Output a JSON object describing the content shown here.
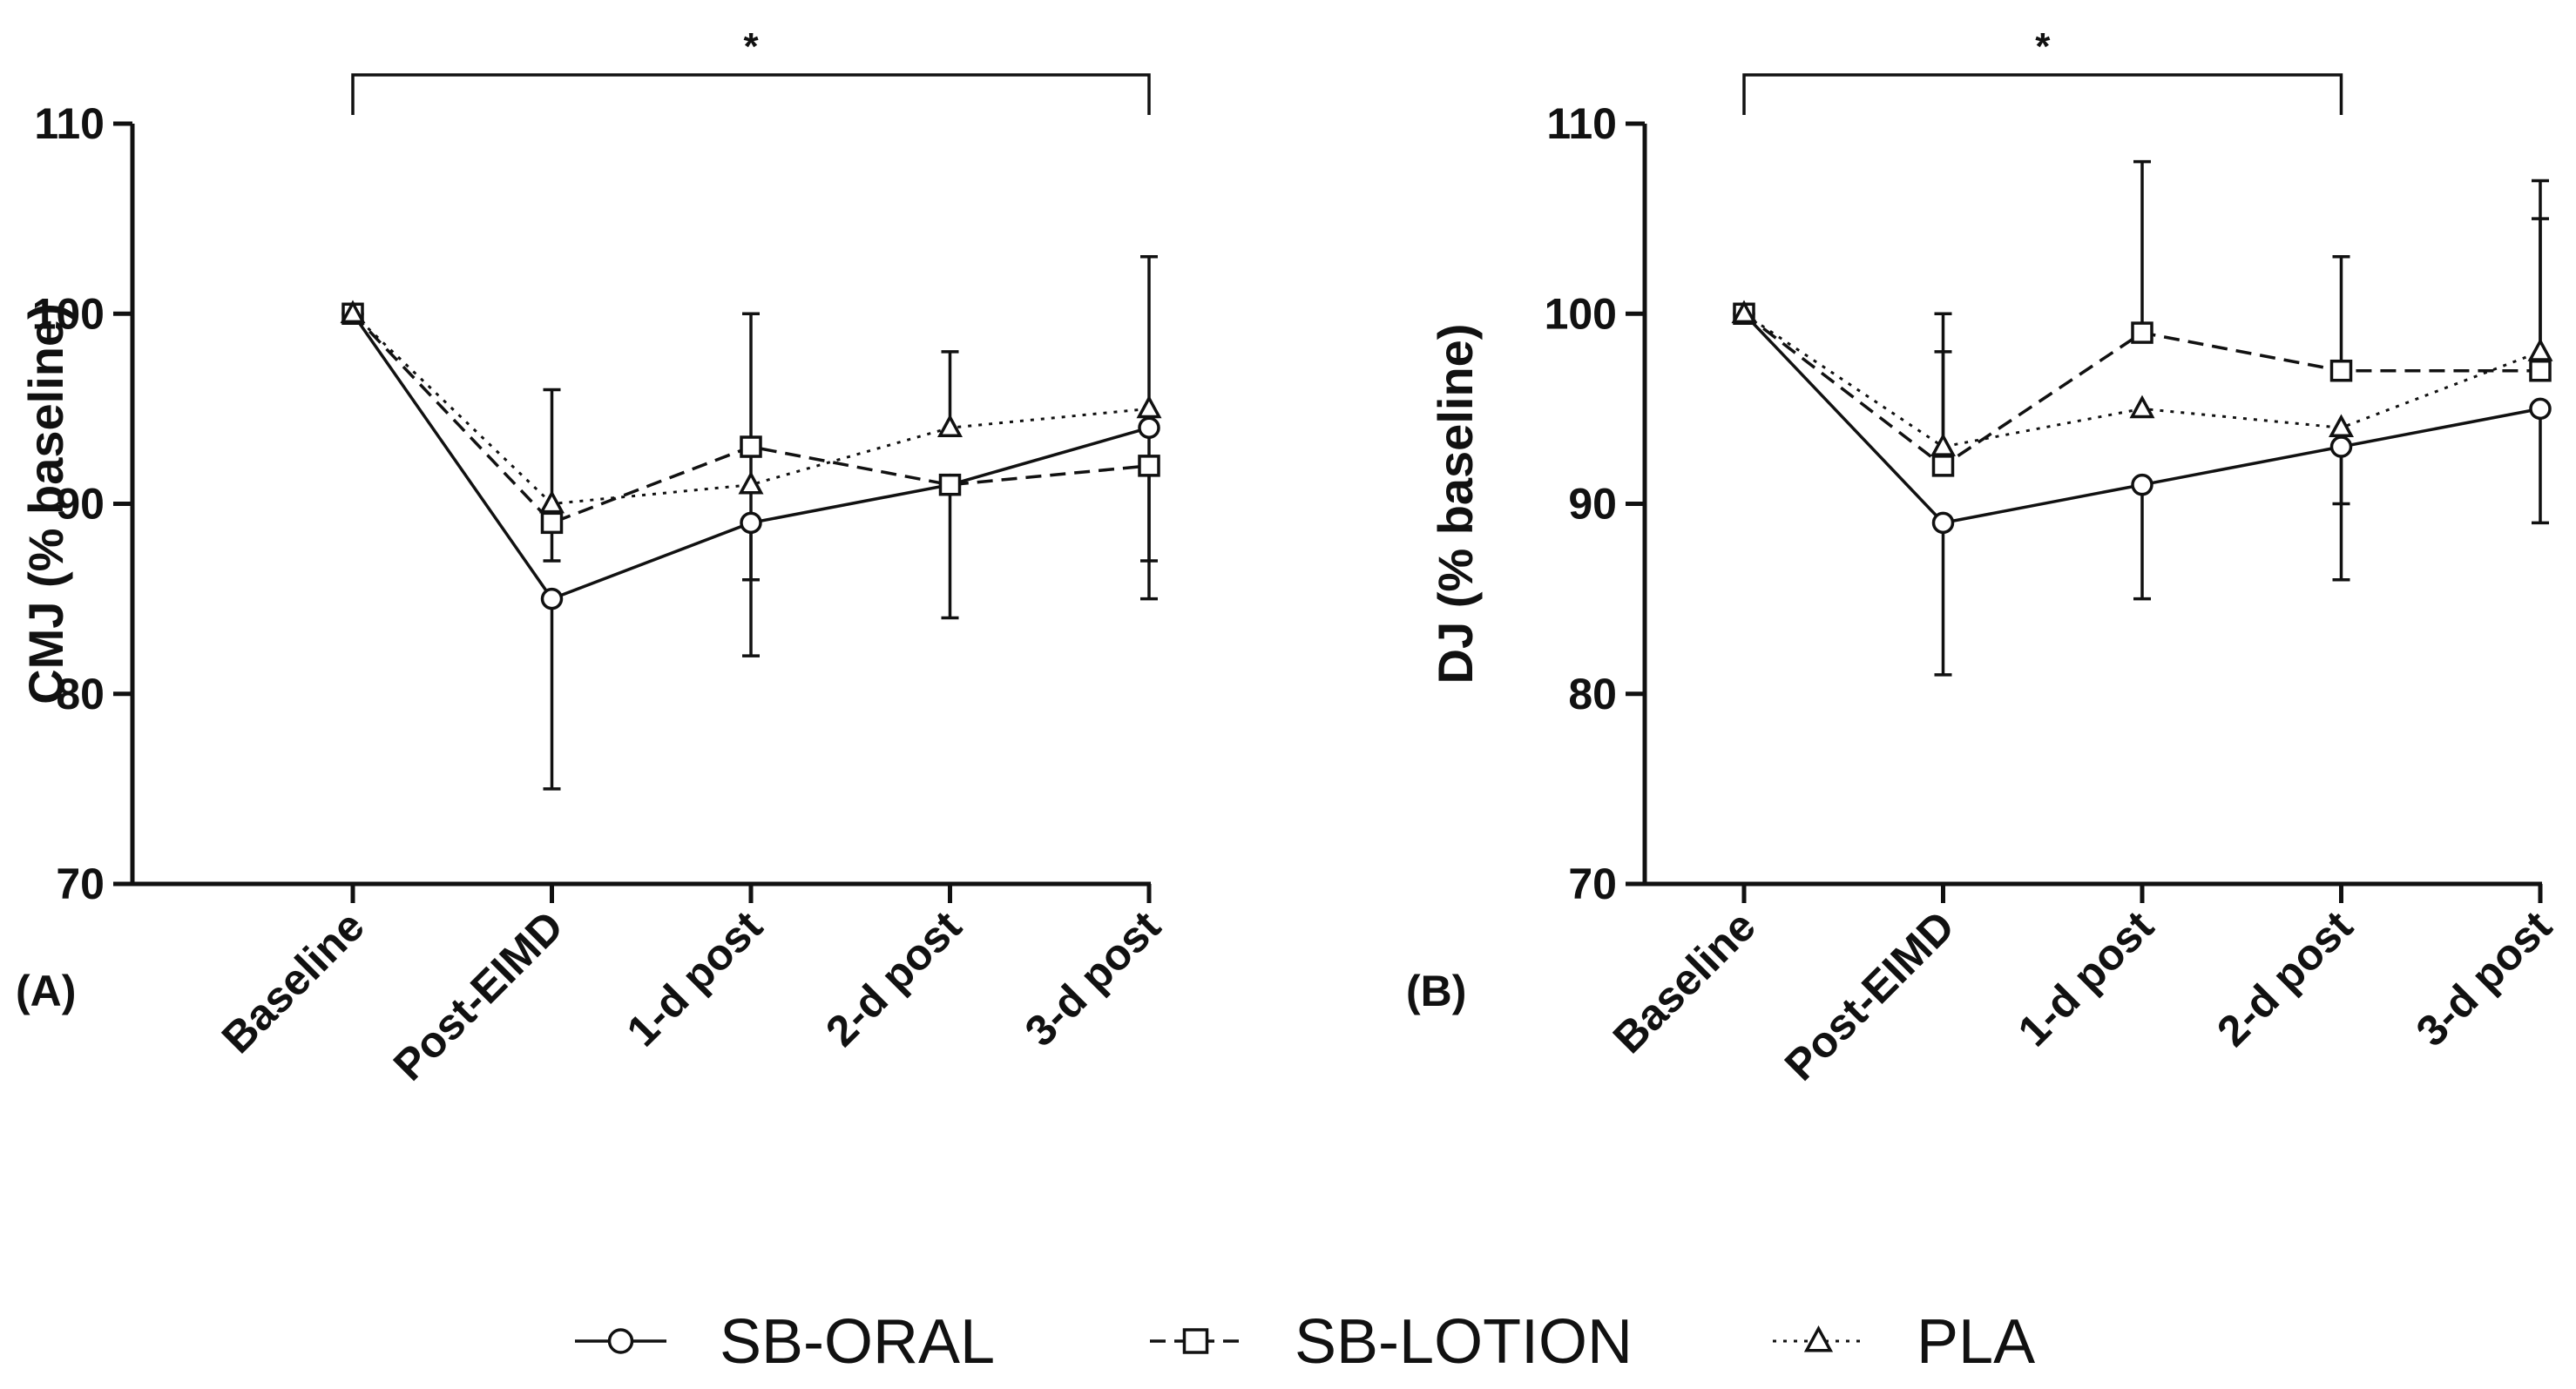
{
  "chart_data": [
    {
      "type": "line",
      "panel_label": "(A)",
      "ylabel": "CMJ (% baseline)",
      "xlabel": "",
      "ylim": [
        70,
        110
      ],
      "yticks": [
        70,
        80,
        90,
        100,
        110
      ],
      "categories": [
        "Baseline",
        "Post-EIMD",
        "1-d post",
        "2-d post",
        "3-d post"
      ],
      "significance": {
        "label": "*",
        "from": "Baseline",
        "to": "3-d post"
      },
      "series": [
        {
          "name": "SB-ORAL",
          "marker": "circle",
          "style": "solid",
          "values": [
            100,
            85,
            89,
            91,
            94
          ],
          "err_low": [
            null,
            75,
            82,
            84,
            85
          ],
          "err_high": [
            null,
            85,
            89,
            91,
            103
          ]
        },
        {
          "name": "SB-LOTION",
          "marker": "square",
          "style": "dashed",
          "values": [
            100,
            89,
            93,
            91,
            92
          ],
          "err_low": [
            null,
            87,
            86,
            91,
            87
          ],
          "err_high": [
            null,
            89,
            100,
            91,
            92
          ]
        },
        {
          "name": "PLA",
          "marker": "triangle",
          "style": "dotted",
          "values": [
            100,
            90,
            91,
            94,
            95
          ],
          "err_low": [
            null,
            90,
            91,
            94,
            95
          ],
          "err_high": [
            null,
            96,
            91,
            98,
            95
          ]
        }
      ]
    },
    {
      "type": "line",
      "panel_label": "(B)",
      "ylabel": "DJ (% baseline)",
      "xlabel": "",
      "ylim": [
        70,
        110
      ],
      "yticks": [
        70,
        80,
        90,
        100,
        110
      ],
      "categories": [
        "Baseline",
        "Post-EIMD",
        "1-d post",
        "2-d post",
        "3-d post"
      ],
      "significance": {
        "label": "*",
        "from": "Baseline",
        "to": "2-d post"
      },
      "series": [
        {
          "name": "SB-ORAL",
          "marker": "circle",
          "style": "solid",
          "values": [
            100,
            89,
            91,
            93,
            95
          ],
          "err_low": [
            null,
            81,
            85,
            86,
            89
          ],
          "err_high": [
            null,
            89,
            91,
            93,
            95
          ]
        },
        {
          "name": "SB-LOTION",
          "marker": "square",
          "style": "dashed",
          "values": [
            100,
            92,
            99,
            97,
            97
          ],
          "err_low": [
            null,
            92,
            99,
            97,
            97
          ],
          "err_high": [
            null,
            98,
            108,
            103,
            105
          ]
        },
        {
          "name": "PLA",
          "marker": "triangle",
          "style": "dotted",
          "values": [
            100,
            93,
            95,
            94,
            98
          ],
          "err_low": [
            null,
            93,
            95,
            90,
            98
          ],
          "err_high": [
            null,
            100,
            95,
            94,
            107
          ]
        }
      ]
    }
  ],
  "legend": {
    "items": [
      {
        "label": "SB-ORAL",
        "marker": "circle",
        "style": "solid"
      },
      {
        "label": "SB-LOTION",
        "marker": "square",
        "style": "dashed"
      },
      {
        "label": "PLA",
        "marker": "triangle",
        "style": "dotted"
      }
    ]
  }
}
